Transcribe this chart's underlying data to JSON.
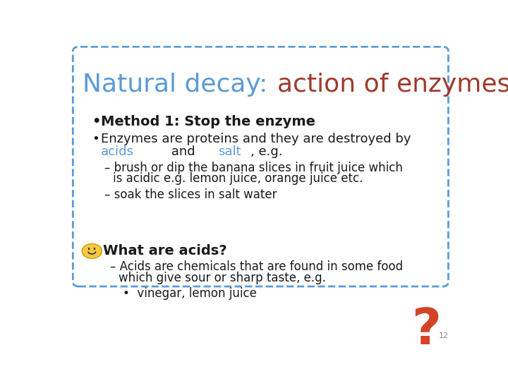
{
  "title_part1": "Natural decay: ",
  "title_part2": "action of enzymes",
  "title_color1": "#5b9bd5",
  "title_color2": "#9e3b2e",
  "title_fontsize": 26,
  "bg_color": "#ffffff",
  "box_edge_color": "#5b9bd5",
  "bullet_color": "#1a1a1a",
  "acids_color": "#5b9bd5",
  "salt_color": "#5b9bd5",
  "page_num": "12",
  "text_color": "#1a1a1a",
  "fontsize_body": 13,
  "fontsize_sub": 12,
  "fontsize_what": 14
}
